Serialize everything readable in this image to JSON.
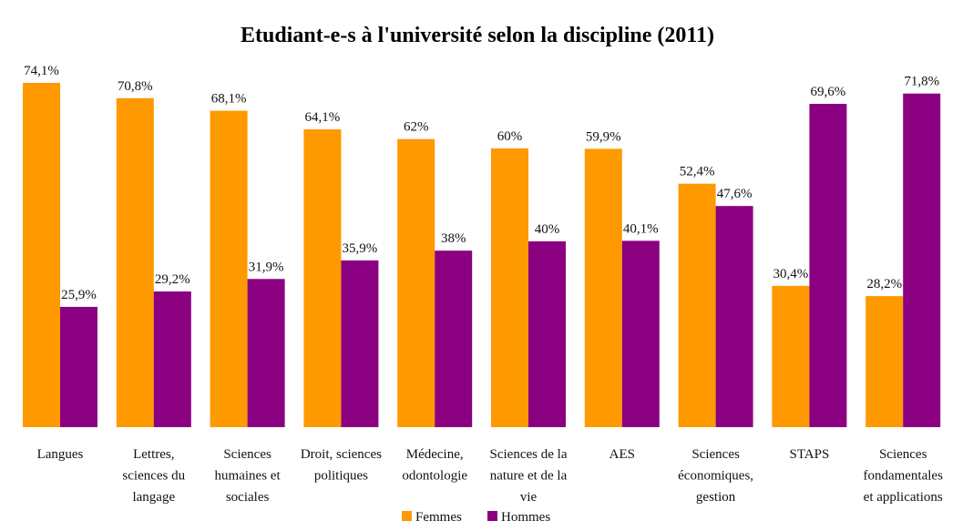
{
  "chart_data": {
    "type": "bar",
    "title": "Etudiant-e-s à l'université selon la discipline (2011)",
    "xlabel": "",
    "ylabel": "",
    "ylim": [
      0,
      75
    ],
    "grid": false,
    "legend_position": "bottom",
    "categories": [
      [
        "Langues"
      ],
      [
        "Lettres,",
        "sciences du",
        "langage"
      ],
      [
        "Sciences",
        "humaines et",
        "sociales"
      ],
      [
        "Droit, sciences",
        "politiques"
      ],
      [
        "Médecine,",
        "odontologie"
      ],
      [
        "Sciences de la",
        "nature et de la",
        "vie"
      ],
      [
        "AES"
      ],
      [
        "Sciences",
        "économiques,",
        "gestion"
      ],
      [
        "STAPS"
      ],
      [
        "Sciences",
        "fondamentales",
        "et applications"
      ]
    ],
    "series": [
      {
        "name": "Femmes",
        "color": "#FF9900",
        "values": [
          74.1,
          70.8,
          68.1,
          64.1,
          62,
          60,
          59.9,
          52.4,
          30.4,
          28.2
        ],
        "labels": [
          "74,1%",
          "70,8%",
          "68,1%",
          "64,1%",
          "62%",
          "60%",
          "59,9%",
          "52,4%",
          "30,4%",
          "28,2%"
        ]
      },
      {
        "name": "Hommes",
        "color": "#8B0080",
        "values": [
          25.9,
          29.2,
          31.9,
          35.9,
          38,
          40,
          40.1,
          47.6,
          69.6,
          71.8
        ],
        "labels": [
          "25,9%",
          "29,2%",
          "31,9%",
          "35,9%",
          "38%",
          "40%",
          "40,1%",
          "47,6%",
          "69,6%",
          "71,8%"
        ]
      }
    ]
  }
}
